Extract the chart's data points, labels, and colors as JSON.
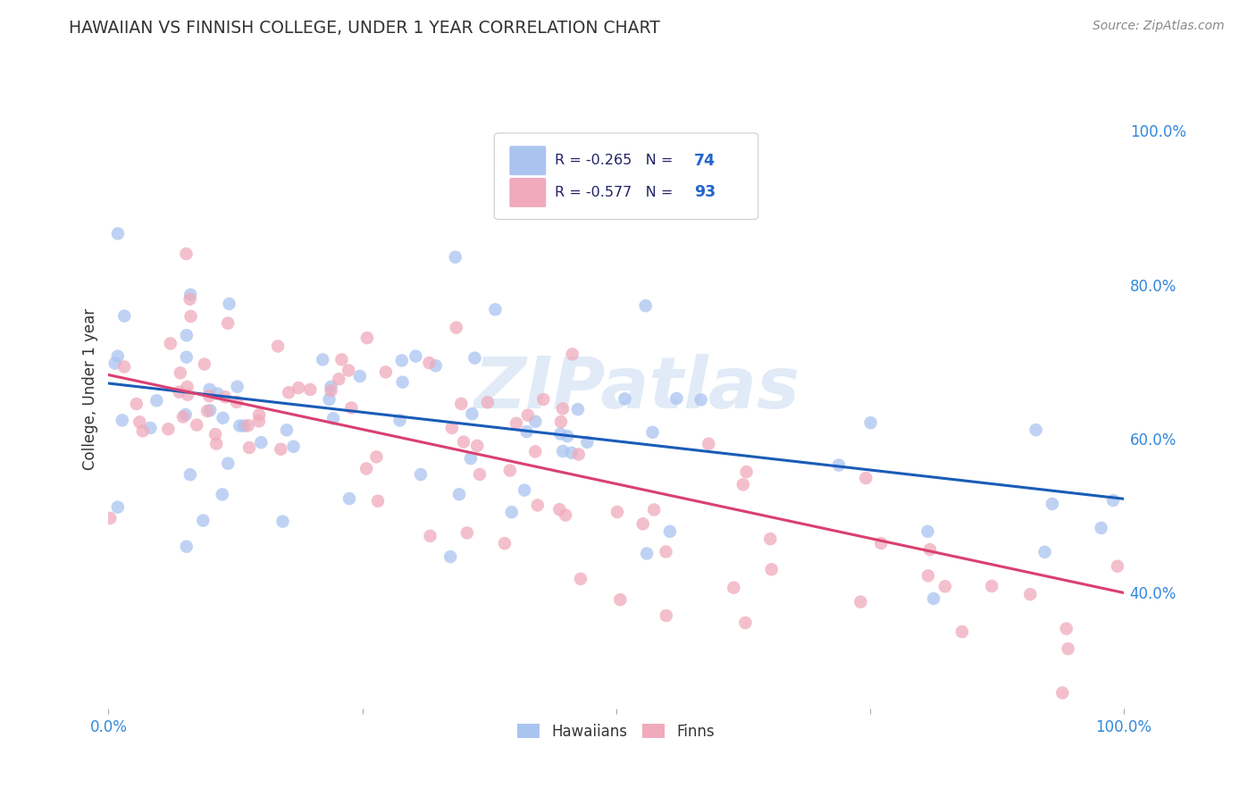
{
  "title": "HAWAIIAN VS FINNISH COLLEGE, UNDER 1 YEAR CORRELATION CHART",
  "source": "Source: ZipAtlas.com",
  "ylabel": "College, Under 1 year",
  "hawaiian_R": -0.265,
  "hawaiian_N": 74,
  "finn_R": -0.577,
  "finn_N": 93,
  "hawaiian_color": "#aac4f0",
  "finn_color": "#f0aabb",
  "hawaiian_line_color": "#1a5cb8",
  "finn_line_color": "#d94070",
  "watermark": "ZIPatlas",
  "background_color": "#ffffff",
  "grid_color": "#cccccc",
  "xlim": [
    0.0,
    1.0
  ],
  "ylim": [
    0.25,
    1.08
  ],
  "right_yticks": [
    0.4,
    0.6,
    0.8,
    1.0
  ],
  "right_yticklabels": [
    "40.0%",
    "60.0%",
    "80.0%",
    "100.0%"
  ],
  "hawaiian_seed": 7,
  "finn_seed": 13,
  "hawaiian_line_y0": 0.672,
  "hawaiian_line_y1": 0.522,
  "finn_line_y0": 0.683,
  "finn_line_y1": 0.4,
  "legend_R_text_color": "#222266",
  "legend_N_color": "#2266cc"
}
